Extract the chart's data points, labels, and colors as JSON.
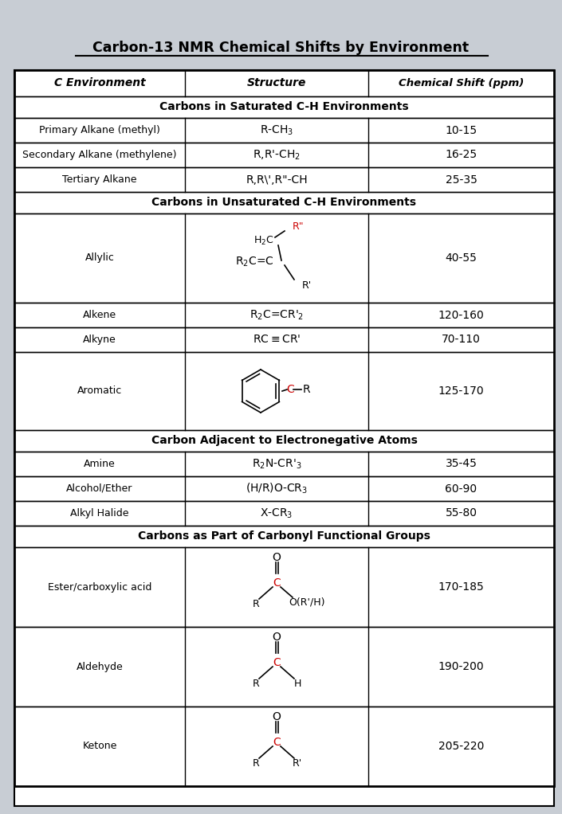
{
  "title": "Carbon-13 NMR Chemical Shifts by Environment",
  "bg_color": "#c8cdd4",
  "col1_header": "C Environment",
  "col2_header": "Structure",
  "col3_header": "Chemical Shift (ppm)"
}
